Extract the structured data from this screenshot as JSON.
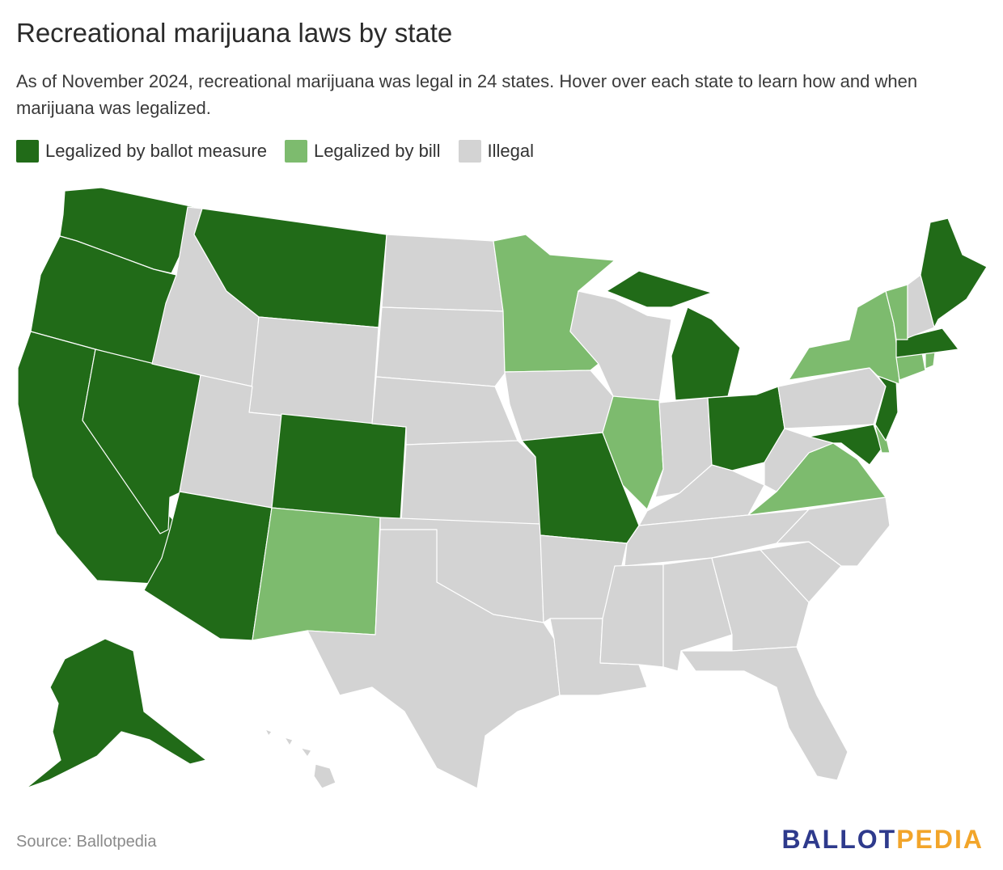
{
  "title": "Recreational marijuana laws by state",
  "subtitle": "As of November 2024, recreational marijuana was legal in 24 states. Hover over each state to learn how and when marijuana was legalized.",
  "legend": [
    {
      "label": "Legalized by ballot measure",
      "color": "#216b18",
      "key": "ballot"
    },
    {
      "label": "Legalized by bill",
      "color": "#7dbb6e",
      "key": "bill"
    },
    {
      "label": "Illegal",
      "color": "#d3d3d3",
      "key": "illegal"
    }
  ],
  "colors": {
    "ballot": "#216b18",
    "bill": "#7dbb6e",
    "illegal": "#d3d3d3"
  },
  "states": {
    "WA": "ballot",
    "OR": "ballot",
    "CA": "ballot",
    "NV": "ballot",
    "AZ": "ballot",
    "MT": "ballot",
    "CO": "ballot",
    "AK": "ballot",
    "MO": "ballot",
    "MI": "ballot",
    "OH": "ballot",
    "ME": "ballot",
    "MA": "ballot",
    "NJ": "ballot",
    "MD": "ballot",
    "NM": "bill",
    "MN": "bill",
    "IL": "bill",
    "VA": "bill",
    "NY": "bill",
    "VT": "bill",
    "CT": "bill",
    "RI": "bill",
    "DE": "bill",
    "ID": "illegal",
    "UT": "illegal",
    "WY": "illegal",
    "ND": "illegal",
    "SD": "illegal",
    "NE": "illegal",
    "KS": "illegal",
    "OK": "illegal",
    "TX": "illegal",
    "IA": "illegal",
    "AR": "illegal",
    "LA": "illegal",
    "WI": "illegal",
    "IN": "illegal",
    "KY": "illegal",
    "TN": "illegal",
    "MS": "illegal",
    "AL": "illegal",
    "GA": "illegal",
    "FL": "illegal",
    "SC": "illegal",
    "NC": "illegal",
    "WV": "illegal",
    "PA": "illegal",
    "NH": "illegal",
    "HI": "illegal"
  },
  "source": "Source: Ballotpedia",
  "logo": {
    "part1": "BALLOT",
    "part2": "PEDIA"
  }
}
